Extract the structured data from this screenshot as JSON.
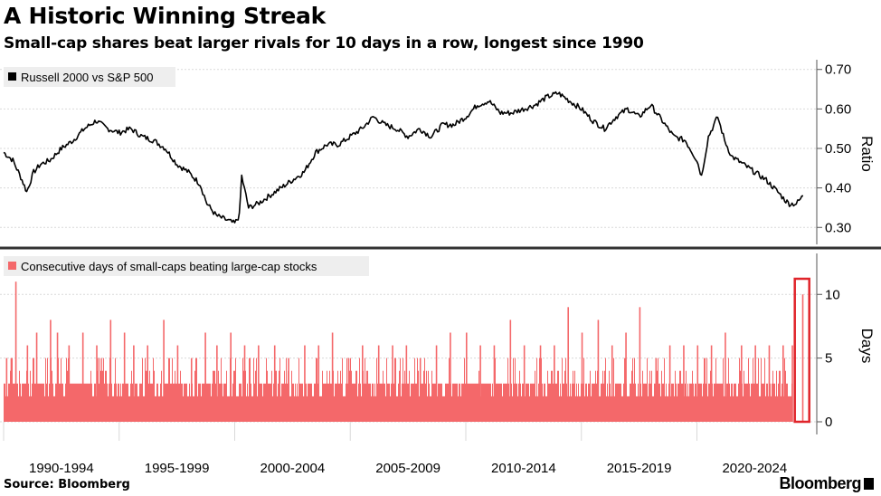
{
  "header": {
    "title": "A Historic Winning Streak",
    "subtitle": "Small-cap shares beat larger rivals for 10 days in a row, longest since 1990"
  },
  "footer": {
    "source": "Source: Bloomberg",
    "brand": "Bloomberg"
  },
  "colors": {
    "ratio_line": "#000000",
    "bars": "#f4686a",
    "highlight_box": "#e0242a",
    "grid": "#d9d9d9",
    "divider": "#333333"
  },
  "chart_data": [
    {
      "type": "line",
      "legend": "Russell 2000 vs S&P 500",
      "ylabel": "Ratio",
      "ylim": [
        0.28,
        0.72
      ],
      "y_ticks": [
        "0.30",
        "0.40",
        "0.50",
        "0.60",
        "0.70"
      ],
      "x_range": [
        1990.0,
        2024.6
      ],
      "legend_position": "top-left",
      "grid": true,
      "series": [
        {
          "name": "Russell 2000 vs S&P 500",
          "x": [
            1990.0,
            1990.4,
            1990.8,
            1991.0,
            1991.3,
            1991.6,
            1992.0,
            1992.5,
            1993.0,
            1993.5,
            1994.0,
            1994.5,
            1995.0,
            1995.5,
            1996.0,
            1996.5,
            1997.0,
            1997.5,
            1998.0,
            1998.5,
            1998.8,
            1999.2,
            1999.6,
            2000.0,
            2000.2,
            2000.3,
            2000.6,
            2001.0,
            2001.5,
            2002.0,
            2002.5,
            2003.0,
            2003.5,
            2004.0,
            2004.5,
            2005.0,
            2005.5,
            2006.0,
            2006.5,
            2007.0,
            2007.5,
            2008.0,
            2008.5,
            2009.0,
            2009.5,
            2010.0,
            2010.5,
            2011.0,
            2011.5,
            2012.0,
            2012.5,
            2013.0,
            2013.5,
            2014.0,
            2014.5,
            2015.0,
            2015.5,
            2016.0,
            2016.5,
            2017.0,
            2017.5,
            2018.0,
            2018.5,
            2019.0,
            2019.5,
            2020.0,
            2020.2,
            2020.5,
            2020.9,
            2021.2,
            2021.5,
            2022.0,
            2022.5,
            2023.0,
            2023.5,
            2023.8,
            2024.0,
            2024.3,
            2024.6
          ],
          "values": [
            0.49,
            0.47,
            0.42,
            0.39,
            0.44,
            0.46,
            0.47,
            0.5,
            0.52,
            0.55,
            0.57,
            0.55,
            0.54,
            0.55,
            0.53,
            0.52,
            0.5,
            0.46,
            0.44,
            0.41,
            0.36,
            0.33,
            0.32,
            0.31,
            0.33,
            0.43,
            0.35,
            0.36,
            0.38,
            0.4,
            0.42,
            0.44,
            0.49,
            0.51,
            0.51,
            0.53,
            0.55,
            0.58,
            0.56,
            0.55,
            0.53,
            0.55,
            0.53,
            0.56,
            0.56,
            0.58,
            0.61,
            0.62,
            0.59,
            0.59,
            0.6,
            0.61,
            0.63,
            0.64,
            0.62,
            0.6,
            0.57,
            0.55,
            0.58,
            0.6,
            0.58,
            0.61,
            0.57,
            0.53,
            0.52,
            0.47,
            0.43,
            0.53,
            0.58,
            0.52,
            0.48,
            0.46,
            0.44,
            0.42,
            0.39,
            0.37,
            0.36,
            0.36,
            0.38
          ]
        }
      ]
    },
    {
      "type": "bar",
      "legend": "Consecutive days of small-caps beating large-cap stocks",
      "ylabel": "Days",
      "ylim": [
        0,
        13.5
      ],
      "y_ticks": [
        "0",
        "5",
        "10"
      ],
      "x_range": [
        1990.0,
        2024.6
      ],
      "legend_position": "top-left",
      "grid": true,
      "x_tick_labels": [
        "1990-1994",
        "1995-1999",
        "2000-2004",
        "2005-2009",
        "2010-2014",
        "2015-2019",
        "2020-2024"
      ],
      "baseline_days": 3,
      "spikes": {
        "x": [
          1990.1,
          1990.3,
          1990.5,
          1991.0,
          1991.4,
          1992.0,
          1992.3,
          1992.8,
          1993.4,
          1994.0,
          1994.6,
          1995.2,
          1995.6,
          1996.2,
          1996.9,
          1997.5,
          1998.1,
          1998.7,
          1999.2,
          1999.8,
          2000.4,
          2001.0,
          2001.7,
          2002.3,
          2003.0,
          2003.6,
          2004.2,
          2004.9,
          2005.5,
          2006.2,
          2006.8,
          2007.4,
          2008.0,
          2008.7,
          2009.3,
          2010.0,
          2010.6,
          2011.2,
          2011.9,
          2012.5,
          2013.2,
          2013.8,
          2014.4,
          2015.0,
          2015.7,
          2016.3,
          2016.9,
          2017.5,
          2018.2,
          2018.8,
          2019.4,
          2020.0,
          2020.6,
          2021.2,
          2021.9,
          2022.5,
          2023.1,
          2023.7,
          2024.1,
          2024.55
        ],
        "values": [
          5,
          5,
          11,
          6,
          7,
          8,
          7,
          6,
          7,
          6,
          8,
          7,
          6,
          6,
          8,
          6,
          5,
          7,
          6,
          7,
          6,
          6,
          6,
          5,
          6,
          6,
          7,
          5,
          6,
          6,
          6,
          6,
          5,
          6,
          7,
          7,
          6,
          6,
          8,
          6,
          6,
          6,
          9,
          7,
          8,
          6,
          7,
          9,
          5,
          6,
          6,
          6,
          6,
          7,
          6,
          6,
          6,
          6,
          6,
          10
        ]
      },
      "highlight_x": 2024.55
    }
  ]
}
